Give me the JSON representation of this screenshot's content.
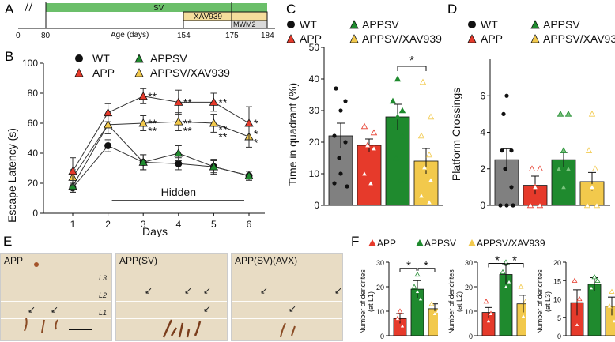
{
  "panel_letters": {
    "a": "A",
    "b": "B",
    "c": "C",
    "d": "D",
    "e": "E",
    "f": "F"
  },
  "timeline": {
    "sv_label": "SV",
    "xav_label": "XAV939",
    "mwm_label": "MWM2",
    "ticks": [
      "0",
      "80",
      "154",
      "175",
      "184"
    ],
    "axis_label": "Age (days)",
    "colors": {
      "sv": "#6bbf6a",
      "xav": "#f5dd9c",
      "mwm": "#d9d9d9"
    }
  },
  "legend": {
    "wt": "WT",
    "app": "APP",
    "appsv": "APPSV",
    "appsv_xav": "APPSV/XAV939"
  },
  "colors": {
    "wt": "#111111",
    "app": "#e63a2b",
    "appsv": "#1f8a2e",
    "appsv_xav": "#f2c94c",
    "gray": "#808080"
  },
  "chart_data": [
    {
      "panel": "B",
      "type": "line",
      "x": [
        1,
        2,
        3,
        4,
        5,
        6
      ],
      "xlabel": "Days",
      "ylabel": "Escape Latency (s)",
      "ylim": [
        0,
        100
      ],
      "yticks": [
        "0",
        "20",
        "40",
        "60",
        "80",
        "100"
      ],
      "xticks": [
        "1",
        "2",
        "3",
        "4",
        "5",
        "6"
      ],
      "annotation": "Hidden",
      "series": [
        {
          "name": "WT",
          "values": [
            17,
            45,
            34,
            33,
            31,
            25
          ],
          "err": [
            3,
            4,
            5,
            4,
            4,
            3
          ]
        },
        {
          "name": "APP",
          "values": [
            28,
            67,
            78,
            74,
            74,
            60
          ],
          "err": [
            9,
            6,
            5,
            8,
            6,
            11
          ]
        },
        {
          "name": "APPSV",
          "values": [
            18,
            59,
            34,
            40,
            31,
            25
          ],
          "err": [
            4,
            6,
            5,
            5,
            5,
            3
          ]
        },
        {
          "name": "APPSV/XAV939",
          "values": [
            24,
            59,
            60,
            61,
            60,
            51
          ],
          "err": [
            5,
            6,
            5,
            6,
            6,
            7
          ]
        }
      ],
      "stars": [
        {
          "x": 3,
          "y": 78,
          "text": "**"
        },
        {
          "x": 4,
          "y": 74,
          "text": "**"
        },
        {
          "x": 5,
          "y": 74,
          "text": "**"
        },
        {
          "x": 6,
          "y": 60,
          "text": "*"
        },
        {
          "x": 3,
          "y": 60,
          "text": "**"
        },
        {
          "x": 3,
          "y": 55,
          "text": "**"
        },
        {
          "x": 4,
          "y": 60,
          "text": "**"
        },
        {
          "x": 4,
          "y": 55,
          "text": "**"
        },
        {
          "x": 5,
          "y": 56,
          "text": "**"
        },
        {
          "x": 5,
          "y": 51,
          "text": "**"
        },
        {
          "x": 6,
          "y": 53,
          "text": "*"
        },
        {
          "x": 6,
          "y": 47,
          "text": "*"
        }
      ]
    },
    {
      "panel": "C",
      "type": "bar",
      "categories": [
        "WT",
        "APP",
        "APPSV",
        "APPSV/XAV939"
      ],
      "values": [
        22,
        19,
        28,
        14
      ],
      "err": [
        4,
        2,
        4,
        4
      ],
      "ylabel": "Time in quadrant (%)",
      "ylim": [
        0,
        50
      ],
      "yticks": [
        "0",
        "10",
        "20",
        "30",
        "40",
        "50"
      ],
      "sig": "*"
    },
    {
      "panel": "D",
      "type": "bar",
      "categories": [
        "WT",
        "APP",
        "APPSV",
        "APPSV/XAV939"
      ],
      "values": [
        2.5,
        1.1,
        2.5,
        1.3
      ],
      "err": [
        0.6,
        0.5,
        0.4,
        0.5
      ],
      "ylabel": "Platform Crossings",
      "ylim": [
        0,
        8
      ],
      "yticks": [
        "0",
        "2",
        "4",
        "6"
      ]
    },
    {
      "panel": "F1",
      "type": "bar",
      "categories": [
        "APP",
        "APPSV",
        "APPSV/XAV939"
      ],
      "values": [
        7,
        19,
        11
      ],
      "err": [
        2,
        3.5,
        2
      ],
      "ylabel": "Number of dendrites (at L1)",
      "ylim": [
        0,
        30
      ],
      "yticks": [
        "0",
        "10",
        "20",
        "30"
      ],
      "sig": [
        "*",
        "*"
      ]
    },
    {
      "panel": "F2",
      "type": "bar",
      "categories": [
        "APP",
        "APPSV",
        "APPSV/XAV939"
      ],
      "values": [
        9.5,
        25,
        13
      ],
      "err": [
        2,
        4,
        3.5
      ],
      "ylabel": "Number of dendrites (at L2)",
      "ylim": [
        0,
        30
      ],
      "yticks": [
        "0",
        "10",
        "20",
        "30"
      ],
      "sig": [
        "*",
        "*"
      ]
    },
    {
      "panel": "F3",
      "type": "bar",
      "categories": [
        "APP",
        "APPSV",
        "APPSV/XAV939"
      ],
      "values": [
        9,
        14,
        8
      ],
      "err": [
        3.5,
        1.8,
        2.5
      ],
      "ylabel": "Number of dendrites (at L3)",
      "ylim": [
        0,
        20
      ],
      "yticks": [
        "0",
        "5",
        "10",
        "15",
        "20"
      ]
    }
  ],
  "micrographs": [
    {
      "label": "APP",
      "layers": [
        "L3",
        "L2",
        "L1"
      ]
    },
    {
      "label": "APP(SV)",
      "layers": []
    },
    {
      "label": "APP(SV)(AVX)",
      "layers": []
    }
  ],
  "f_legend": {
    "app": "APP",
    "appsv": "APPSV",
    "appsv_xav": "APPSV/XAV939"
  }
}
